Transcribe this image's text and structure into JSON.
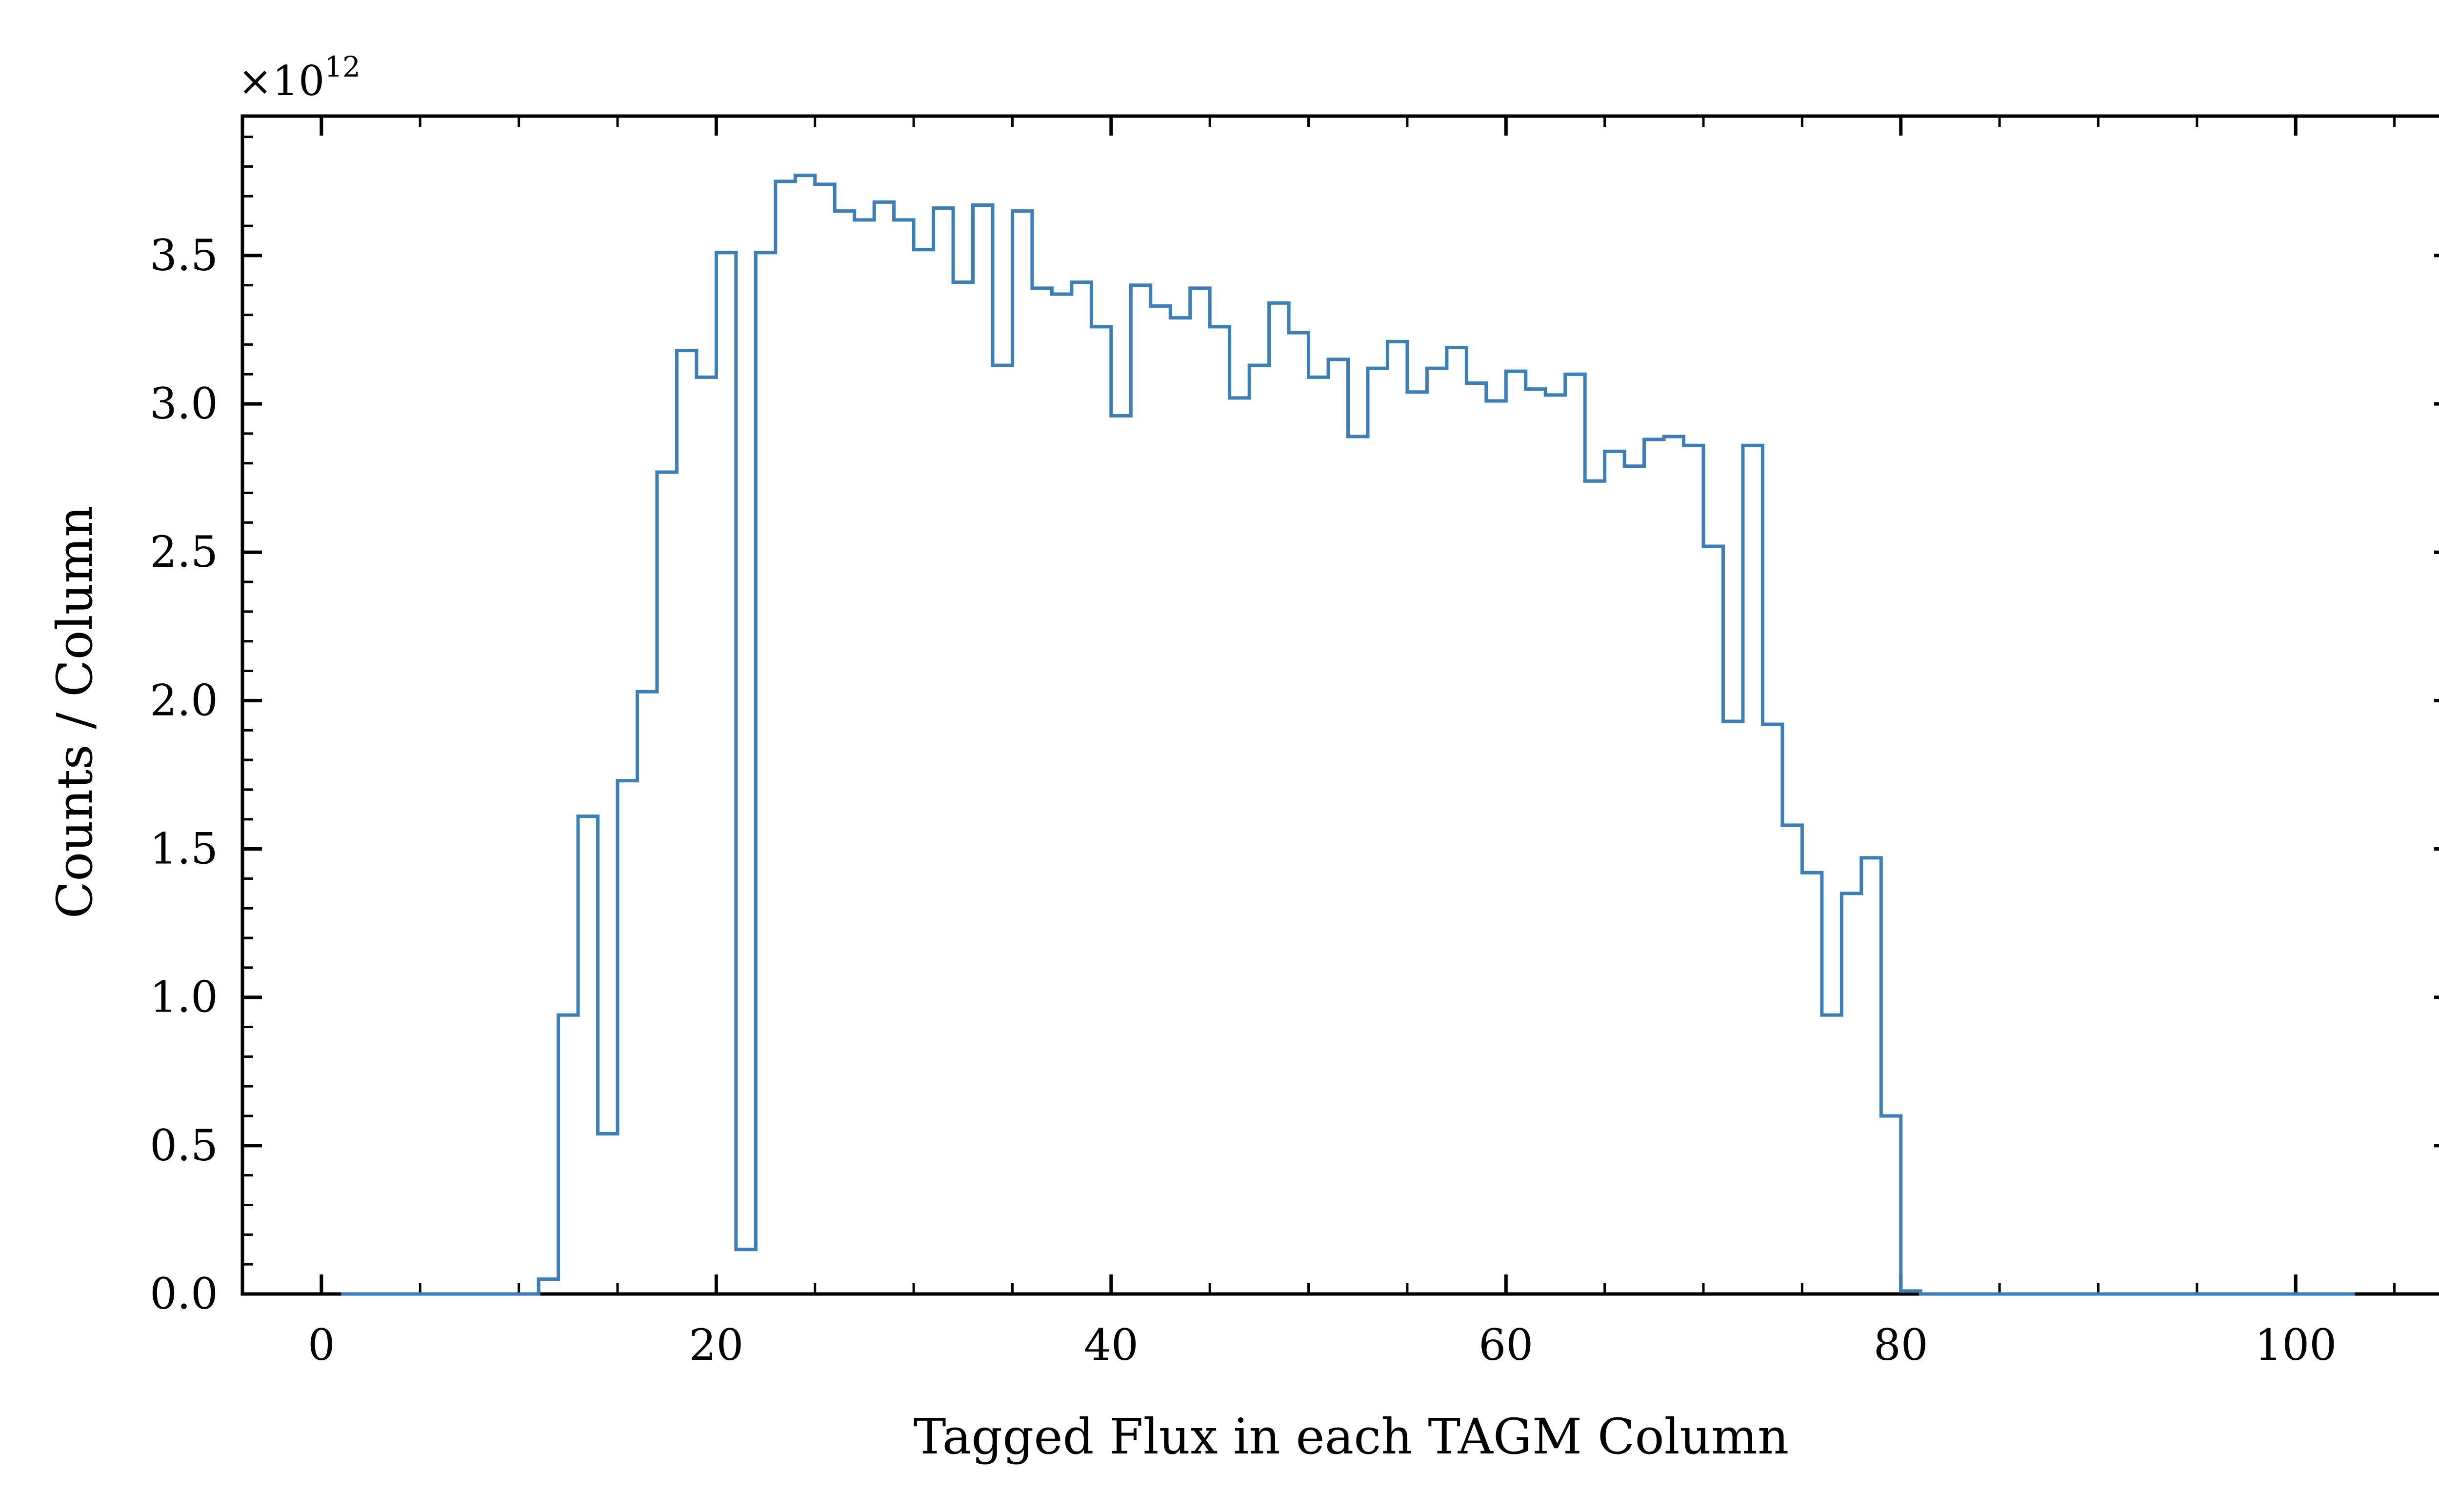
{
  "chart_data": {
    "type": "histogram",
    "title": "",
    "xlabel": "Tagged Flux in each TAGM Column",
    "ylabel": "Counts / Column",
    "y_multiplier": "×10",
    "y_multiplier_exponent": "12",
    "xlim": [
      -4,
      108
    ],
    "ylim": [
      0,
      3.97
    ],
    "x_ticks": [
      0,
      20,
      40,
      60,
      80,
      100
    ],
    "x_tick_labels": [
      "0",
      "20",
      "40",
      "60",
      "80",
      "100"
    ],
    "y_ticks": [
      0,
      0.5,
      1.0,
      1.5,
      2.0,
      2.5,
      3.0,
      3.5
    ],
    "y_tick_labels": [
      "0.0",
      "0.5",
      "1.0",
      "1.5",
      "2.0",
      "2.5",
      "3.0",
      "3.5"
    ],
    "grid": false,
    "line_color": "#3a7fba",
    "bin_start": 1,
    "bin_width": 1,
    "values": [
      0,
      0,
      0,
      0,
      0,
      0,
      0,
      0,
      0,
      0,
      0.05,
      0.94,
      1.61,
      0.54,
      1.73,
      2.03,
      2.77,
      3.18,
      3.09,
      3.51,
      0.15,
      3.51,
      3.75,
      3.77,
      3.74,
      3.65,
      3.62,
      3.68,
      3.62,
      3.52,
      3.66,
      3.41,
      3.67,
      3.13,
      3.65,
      3.39,
      3.37,
      3.41,
      3.26,
      2.96,
      3.4,
      3.33,
      3.29,
      3.39,
      3.26,
      3.02,
      3.13,
      3.34,
      3.24,
      3.09,
      3.15,
      2.89,
      3.12,
      3.21,
      3.04,
      3.12,
      3.19,
      3.07,
      3.01,
      3.11,
      3.05,
      3.03,
      3.1,
      2.74,
      2.84,
      2.79,
      2.88,
      2.89,
      2.86,
      2.52,
      1.93,
      2.86,
      1.92,
      1.58,
      1.42,
      0.94,
      1.35,
      1.47,
      0.6,
      0.01,
      0,
      0,
      0,
      0,
      0,
      0,
      0,
      0,
      0,
      0,
      0,
      0,
      0,
      0,
      0,
      0,
      0,
      0,
      0,
      0,
      0,
      0
    ]
  }
}
